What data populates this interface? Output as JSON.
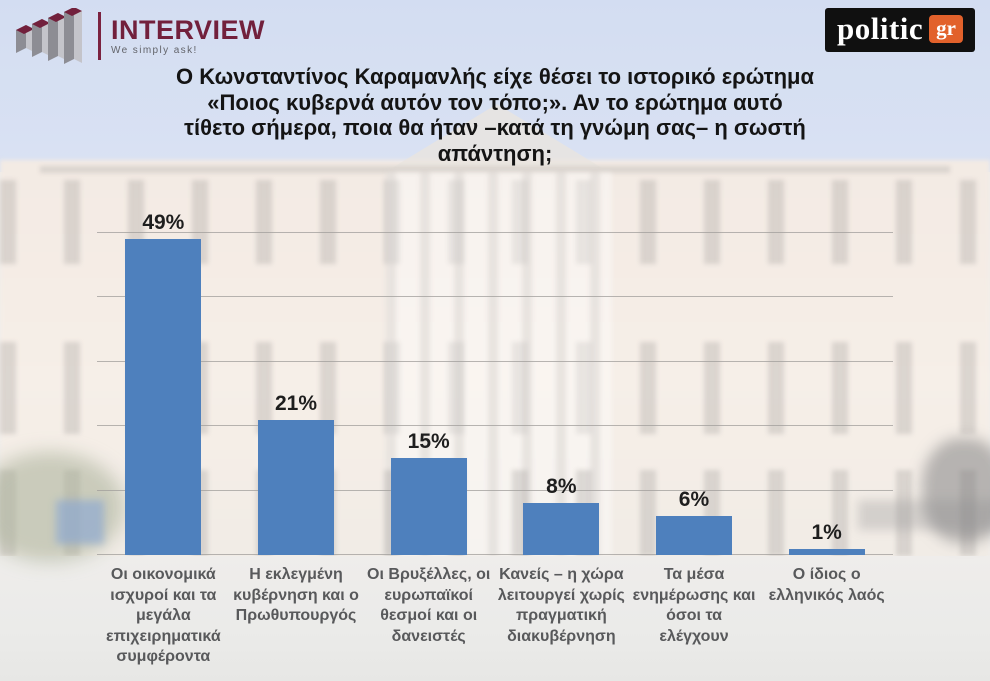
{
  "header": {
    "interview_logo": {
      "name": "INTERVIEW",
      "tagline": "We simply ask!",
      "accent_color": "#72203c"
    },
    "politic_logo": {
      "text": "politic",
      "suffix": "gr",
      "bg_color": "#101010",
      "suffix_bg_color": "#e2612b"
    }
  },
  "title": {
    "full_text": "Ο Κωνσταντίνος Καραμανλής είχε θέσει το ιστορικό ερώτημα «Ποιος κυβερνά αυτόν τον τόπο;». Αν το ερώτημα αυτό τίθετο σήμερα, ποια θα ήταν –κατά τη γνώμη σας– η σωστή απάντηση;",
    "lines": [
      "Ο Κωνσταντίνος Καραμανλής είχε θέσει το ιστορικό ερώτημα",
      "«Ποιος κυβερνά αυτόν τον τόπο;». Αν το ερώτημα αυτό",
      "τίθετο σήμερα, ποια θα ήταν –κατά τη γνώμη σας– η σωστή",
      "απάντηση;"
    ]
  },
  "chart_data": {
    "type": "bar",
    "categories": [
      "Οι οικονομικά ισχυροί και τα μεγάλα επιχειρηματικά συμφέροντα",
      "Η εκλεγμένη κυβέρνηση και ο Πρωθυπουργός",
      "Οι Βρυξέλλες, οι ευρωπαϊκοί θεσμοί και οι δανειστές",
      "Κανείς – η χώρα λειτουργεί χωρίς πραγματική διακυβέρνηση",
      "Τα μέσα ενημέρωσης και όσοι τα ελέγχουν",
      "Ο ίδιος ο ελληνικός λαός"
    ],
    "values": [
      49,
      21,
      15,
      8,
      6,
      1
    ],
    "value_labels": [
      "49%",
      "21%",
      "15%",
      "8%",
      "6%",
      "1%"
    ],
    "title": "",
    "xlabel": "",
    "ylabel": "",
    "ylim": [
      0,
      50
    ],
    "grid": true,
    "grid_step": 10,
    "legend": false,
    "bar_color": "#4e80bd",
    "value_label_color": "#1e1e1e",
    "category_label_color": "#58595b"
  }
}
